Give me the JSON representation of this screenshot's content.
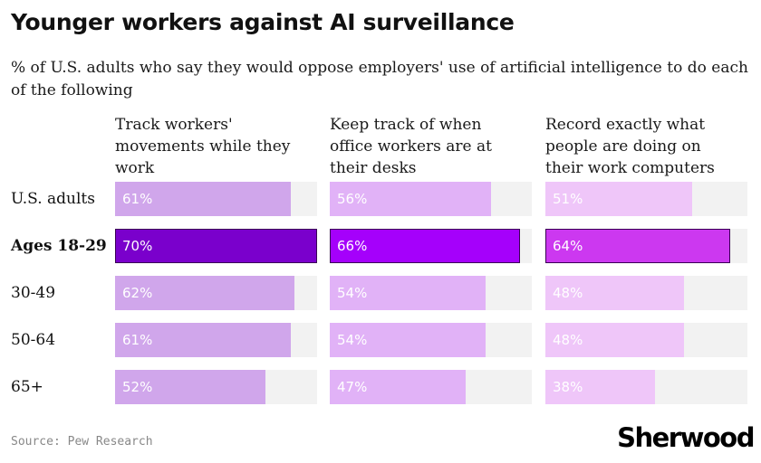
{
  "title": "Younger workers against AI surveillance",
  "subtitle": "% of U.S. adults who say they would oppose employers' use of artificial intelligence to do each of the following",
  "source": "Source: Pew Research",
  "brand": "Sherwood",
  "colors": {
    "track": "#f2f2f2",
    "col1_base": "#d0a6eb",
    "col1_highlight": "#7a00cc",
    "col2_base": "#e1b2f7",
    "col2_highlight": "#a500fb",
    "col3_base": "#efc6f9",
    "col3_highlight": "#cc38f0"
  },
  "chart_data": {
    "type": "bar",
    "orientation": "horizontal",
    "title": "Younger workers against AI surveillance",
    "subtitle": "% of U.S. adults who say they would oppose employers' use of artificial intelligence to do each of the following",
    "categories": [
      "U.S. adults",
      "Ages 18-29",
      "30-49",
      "50-64",
      "65+"
    ],
    "highlight_category": "Ages 18-29",
    "xlim": [
      0,
      70
    ],
    "series": [
      {
        "name": "Track workers' movements while they work",
        "values": [
          61,
          70,
          62,
          61,
          52
        ]
      },
      {
        "name": "Keep track of when office workers are at their desks",
        "values": [
          56,
          66,
          54,
          54,
          47
        ]
      },
      {
        "name": "Record exactly what people are doing on their work computers",
        "values": [
          51,
          64,
          48,
          48,
          38
        ]
      }
    ]
  }
}
